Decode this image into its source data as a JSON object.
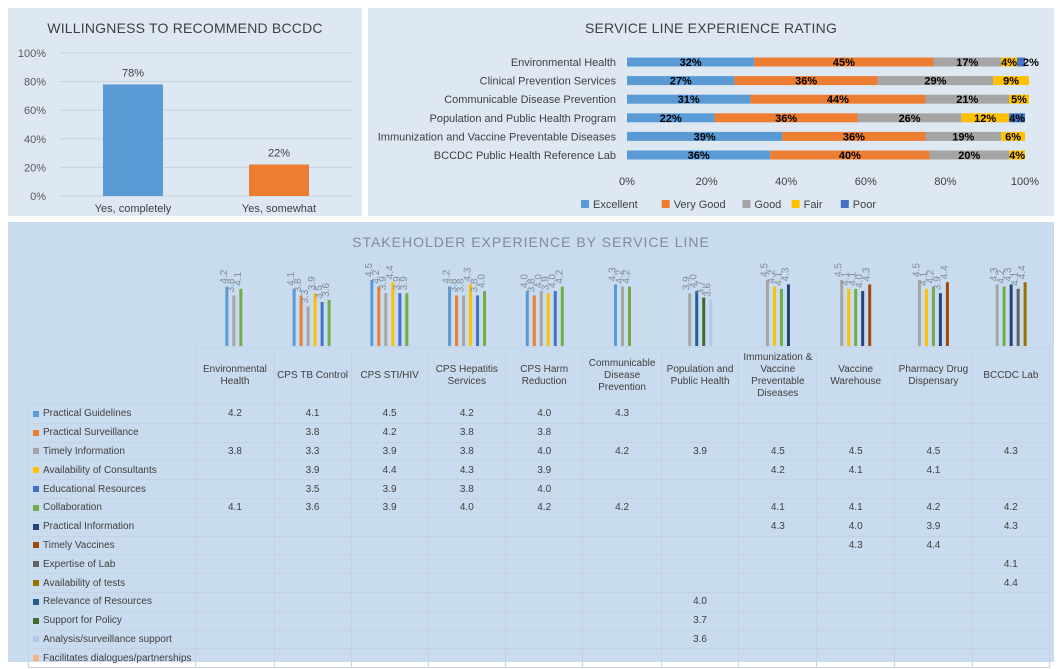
{
  "chart_data": [
    {
      "type": "bar",
      "title": "WILLINGNESS TO RECOMMEND BCCDC",
      "categories": [
        "Yes, completely",
        "Yes, somewhat"
      ],
      "values": [
        78,
        22
      ],
      "value_labels": [
        "78%",
        "22%"
      ],
      "colors": [
        "#5b9bd5",
        "#ed7d31"
      ],
      "ylim": [
        0,
        100
      ],
      "yticks": [
        "0%",
        "20%",
        "40%",
        "60%",
        "80%",
        "100%"
      ]
    },
    {
      "type": "bar",
      "orientation": "horizontal-stacked-100",
      "title": "SERVICE LINE EXPERIENCE RATING",
      "categories": [
        "Environmental Health",
        "Clinical Prevention Services",
        "Communicable Disease Prevention",
        "Population and Public Health Program",
        "Immunization and Vaccine Preventable Diseases",
        "BCCDC Public Health Reference Lab"
      ],
      "series": [
        {
          "name": "Excellent",
          "color": "#5b9bd5",
          "values": [
            32,
            27,
            31,
            22,
            39,
            36
          ],
          "labels": [
            "32%",
            "27%",
            "31%",
            "22%",
            "39%",
            "36%"
          ]
        },
        {
          "name": "Very Good",
          "color": "#ed7d31",
          "values": [
            45,
            36,
            44,
            36,
            36,
            40
          ],
          "labels": [
            "45%",
            "36%",
            "44%",
            "36%",
            "36%",
            "40%"
          ]
        },
        {
          "name": "Good",
          "color": "#a5a5a5",
          "values": [
            17,
            29,
            21,
            26,
            19,
            20
          ],
          "labels": [
            "17%",
            "29%",
            "21%",
            "26%",
            "19%",
            "20%"
          ]
        },
        {
          "name": "Fair",
          "color": "#ffc000",
          "values": [
            4,
            9,
            5,
            12,
            6,
            4
          ],
          "labels": [
            "4%",
            "9%",
            "5%",
            "12%",
            "6%",
            "4%"
          ]
        },
        {
          "name": "Poor",
          "color": "#4472c4",
          "values": [
            2,
            0,
            0,
            4,
            0,
            0
          ],
          "labels": [
            "2%",
            "",
            "",
            "4%",
            "",
            ""
          ]
        }
      ],
      "xticks": [
        "0%",
        "20%",
        "40%",
        "60%",
        "80%",
        "100%"
      ],
      "legend_position": "bottom"
    },
    {
      "type": "bar",
      "title": "STAKEHOLDER EXPERIENCE BY SERVICE LINE",
      "ylim": [
        0,
        5
      ],
      "categories": [
        "Environmental Health",
        "CPS TB Control",
        "CPS STI/HIV",
        "CPS Hepatitis Services",
        "CPS Harm Reduction",
        "Communicable Disease Prevention",
        "Population and Public Health",
        "Immunization & Vaccine Preventable Diseases",
        "Vaccine Warehouse",
        "Pharmacy Drug Dispensary",
        "BCCDC Lab"
      ],
      "series": [
        {
          "name": "Practical Guidelines",
          "color": "#5b9bd5",
          "values": [
            4.2,
            4.1,
            4.5,
            4.2,
            4.0,
            4.3,
            null,
            null,
            null,
            null,
            null
          ]
        },
        {
          "name": "Practical Surveillance",
          "color": "#ed7d31",
          "values": [
            null,
            3.8,
            4.2,
            3.8,
            3.8,
            null,
            null,
            null,
            null,
            null,
            null
          ]
        },
        {
          "name": "Timely Information",
          "color": "#a5a5a5",
          "values": [
            3.8,
            3.3,
            3.9,
            3.8,
            4.0,
            4.2,
            3.9,
            4.5,
            4.5,
            4.5,
            4.3
          ]
        },
        {
          "name": "Availability of Consultants",
          "color": "#ffc000",
          "values": [
            null,
            3.9,
            4.4,
            4.3,
            3.9,
            null,
            null,
            4.2,
            4.1,
            4.1,
            null
          ]
        },
        {
          "name": "Educational Resources",
          "color": "#4472c4",
          "values": [
            null,
            3.5,
            3.9,
            3.8,
            4.0,
            null,
            null,
            null,
            null,
            null,
            null
          ]
        },
        {
          "name": "Collaboration",
          "color": "#70ad47",
          "values": [
            4.1,
            3.6,
            3.9,
            4.0,
            4.2,
            4.2,
            null,
            4.1,
            4.1,
            4.2,
            4.2
          ]
        },
        {
          "name": "Practical Information",
          "color": "#264478",
          "values": [
            null,
            null,
            null,
            null,
            null,
            null,
            null,
            4.3,
            4.0,
            3.9,
            4.3
          ]
        },
        {
          "name": "Timely Vaccines",
          "color": "#9e480e",
          "values": [
            null,
            null,
            null,
            null,
            null,
            null,
            null,
            null,
            4.3,
            4.4,
            null
          ]
        },
        {
          "name": "Expertise of Lab",
          "color": "#636363",
          "values": [
            null,
            null,
            null,
            null,
            null,
            null,
            null,
            null,
            null,
            null,
            4.1
          ]
        },
        {
          "name": "Availability of tests",
          "color": "#997300",
          "values": [
            null,
            null,
            null,
            null,
            null,
            null,
            null,
            null,
            null,
            null,
            4.4
          ]
        },
        {
          "name": "Relevance of Resources",
          "color": "#255e91",
          "values": [
            null,
            null,
            null,
            null,
            null,
            null,
            4.0,
            null,
            null,
            null,
            null
          ]
        },
        {
          "name": "Support for Policy",
          "color": "#43682b",
          "values": [
            null,
            null,
            null,
            null,
            null,
            null,
            3.7,
            null,
            null,
            null,
            null
          ]
        },
        {
          "name": "Analysis/surveillance support",
          "color": "#b4c7e7",
          "values": [
            null,
            null,
            null,
            null,
            null,
            null,
            3.6,
            null,
            null,
            null,
            null
          ]
        },
        {
          "name": "Facilitates dialogues/partnerships",
          "color": "#f4b183",
          "values": [
            null,
            null,
            null,
            null,
            null,
            null,
            null,
            null,
            null,
            null,
            null
          ]
        }
      ]
    }
  ]
}
